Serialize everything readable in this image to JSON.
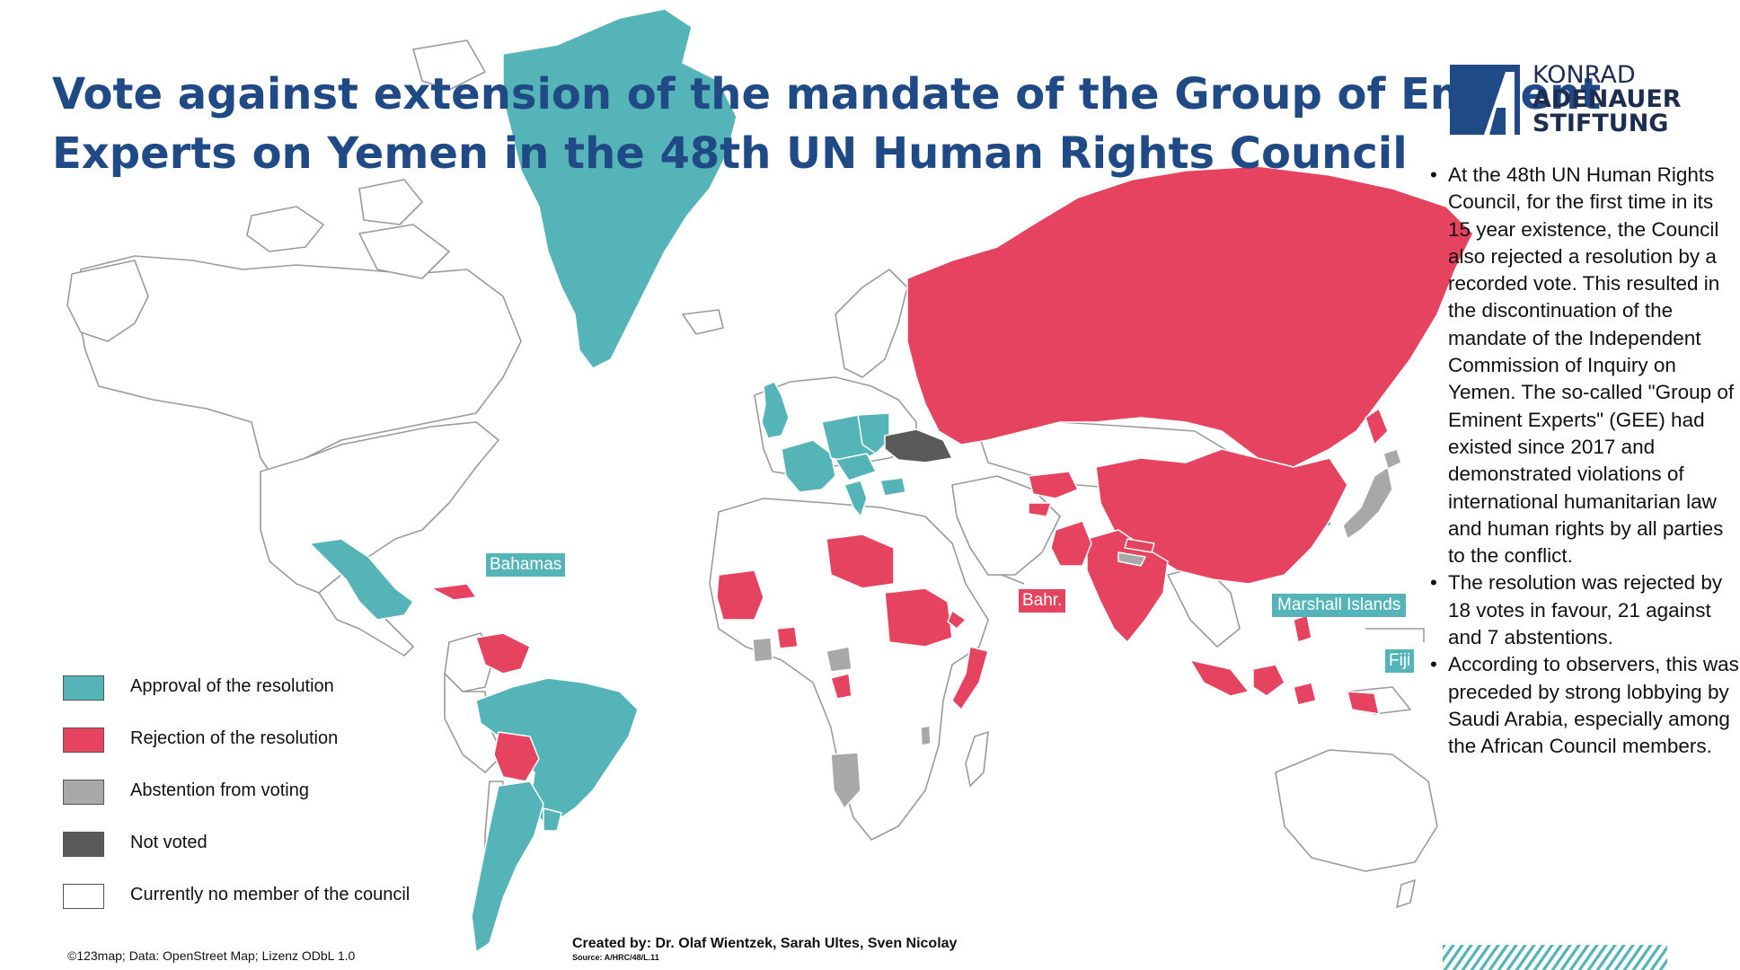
{
  "title": {
    "line1": "Vote against extension of the mandate of the Group of Eminent",
    "line2": "Experts on Yemen in the 48th UN Human Rights Council"
  },
  "logo": {
    "line1": "KONRAD",
    "line2": "ADENAUER",
    "line3": "STIFTUNG"
  },
  "bullets": [
    "At the 48th UN Human Rights Council, for the first time in its 15 year existence, the Council also rejected a resolution by a recorded vote. This resulted in the discontinuation of the mandate of the Independent Commission of Inquiry on Yemen. The so-called \"Group of Eminent Experts\" (GEE) had existed since 2017 and demonstrated violations of international humanitarian law and human rights by all parties to the conflict.",
    "The resolution was rejected by 18 votes in favour, 21 against and 7 abstentions.",
    "According to observers, this was preceded by strong lobbying by Saudi Arabia, especially among the African Council members."
  ],
  "legend": [
    {
      "label": "Approval of the resolution",
      "color": "#55b4b8"
    },
    {
      "label": "Rejection of the resolution",
      "color": "#e5435f"
    },
    {
      "label": "Abstention from voting",
      "color": "#a8a8a8"
    },
    {
      "label": "Not voted",
      "color": "#5a5a5a"
    },
    {
      "label": "Currently no member of the council",
      "color": "#ffffff"
    }
  ],
  "map_labels": {
    "bahamas": "Bahamas",
    "bahrain": "Bahr.",
    "marshall_islands": "Marshall Islands",
    "fiji": "Fiji"
  },
  "credits": "©123map; Data: OpenStreet Map; Lizenz ODbL 1.0",
  "created_by": "Created by: Dr. Olaf Wientzek, Sarah Ultes, Sven Nicolay",
  "source": "Source: A/HRC/48/L.11",
  "colors": {
    "approval": "#55b4b8",
    "rejection": "#e5435f",
    "abstention": "#a8a8a8",
    "not_voted": "#5a5a5a",
    "title": "#1f4a85",
    "logo": "#1f4a85"
  }
}
